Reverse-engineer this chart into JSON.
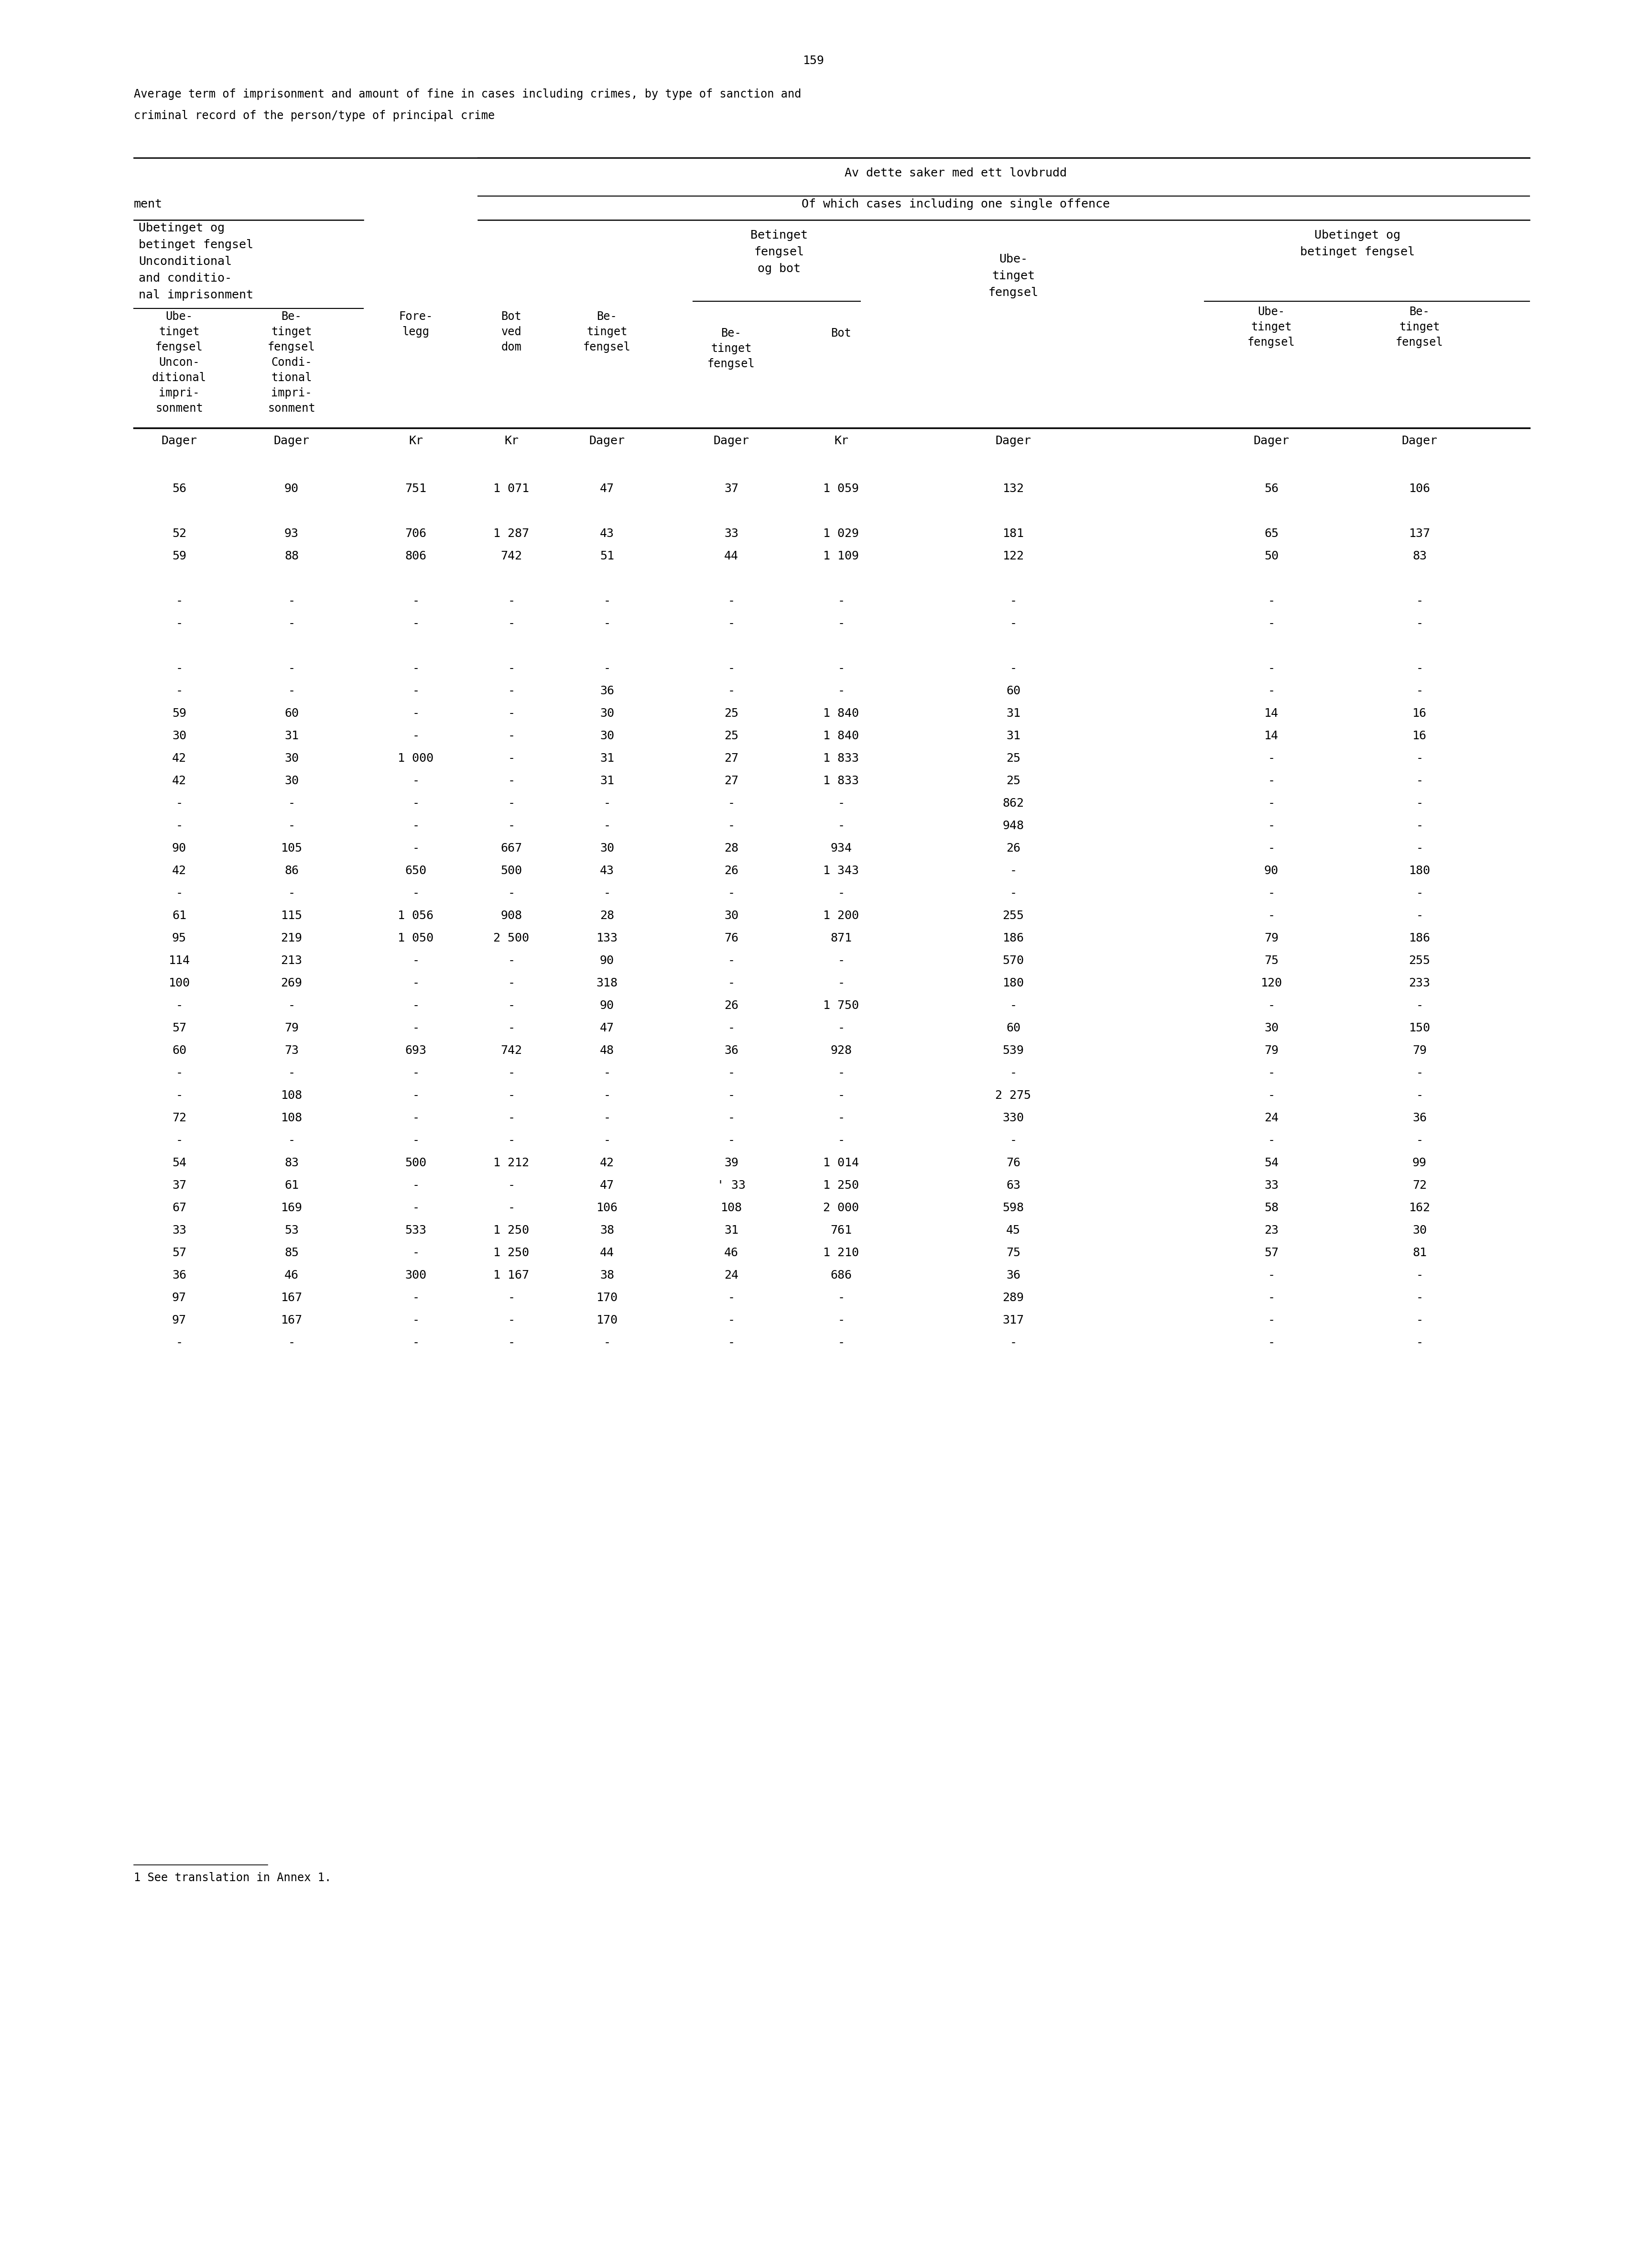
{
  "page_number": "159",
  "title_line1": "Average term of imprisonment and amount of fine in cases including crimes, by type of sanction and",
  "title_line2": "criminal record of the person/type of principal crime",
  "unit_row": [
    "Dager",
    "Dager",
    "Kr",
    "Kr",
    "Dager",
    "Dager",
    "Kr",
    "Dager",
    "Dager",
    "Dager"
  ],
  "data_rows": [
    [
      "56",
      "90",
      "751",
      "1 071",
      "47",
      "37",
      "1 059",
      "132",
      "56",
      "106"
    ],
    [
      "",
      "",
      "",
      "",
      "",
      "",
      "",
      "",
      "",
      ""
    ],
    [
      "52",
      "93",
      "706",
      "1 287",
      "43",
      "33",
      "1 029",
      "181",
      "65",
      "137"
    ],
    [
      "59",
      "88",
      "806",
      "742",
      "51",
      "44",
      "1 109",
      "122",
      "50",
      "83"
    ],
    [
      "",
      "",
      "",
      "",
      "",
      "",
      "",
      "",
      "",
      ""
    ],
    [
      "-",
      "-",
      "-",
      "-",
      "-",
      "-",
      "-",
      "-",
      "-",
      "-"
    ],
    [
      "-",
      "-",
      "-",
      "-",
      "-",
      "-",
      "-",
      "-",
      "-",
      "-"
    ],
    [
      "",
      "",
      "",
      "",
      "",
      "",
      "",
      "",
      "",
      ""
    ],
    [
      "-",
      "-",
      "-",
      "-",
      "-",
      "-",
      "-",
      "-",
      "-",
      "-"
    ],
    [
      "-",
      "-",
      "-",
      "-",
      "36",
      "-",
      "-",
      "60",
      "-",
      "-"
    ],
    [
      "59",
      "60",
      "-",
      "-",
      "30",
      "25",
      "1 840",
      "31",
      "14",
      "16"
    ],
    [
      "30",
      "31",
      "-",
      "-",
      "30",
      "25",
      "1 840",
      "31",
      "14",
      "16"
    ],
    [
      "42",
      "30",
      "1 000",
      "-",
      "31",
      "27",
      "1 833",
      "25",
      "-",
      "-"
    ],
    [
      "42",
      "30",
      "-",
      "-",
      "31",
      "27",
      "1 833",
      "25",
      "-",
      "-"
    ],
    [
      "-",
      "-",
      "-",
      "-",
      "-",
      "-",
      "-",
      "862",
      "-",
      "-"
    ],
    [
      "-",
      "-",
      "-",
      "-",
      "-",
      "-",
      "-",
      "948",
      "-",
      "-"
    ],
    [
      "90",
      "105",
      "-",
      "667",
      "30",
      "28",
      "934",
      "26",
      "-",
      "-"
    ],
    [
      "42",
      "86",
      "650",
      "500",
      "43",
      "26",
      "1 343",
      "-",
      "90",
      "180"
    ],
    [
      "-",
      "-",
      "-",
      "-",
      "-",
      "-",
      "-",
      "-",
      "-",
      "-"
    ],
    [
      "61",
      "115",
      "1 056",
      "908",
      "28",
      "30",
      "1 200",
      "255",
      "-",
      "-"
    ],
    [
      "95",
      "219",
      "1 050",
      "2 500",
      "133",
      "76",
      "871",
      "186",
      "79",
      "186"
    ],
    [
      "114",
      "213",
      "-",
      "-",
      "90",
      "-",
      "-",
      "570",
      "75",
      "255"
    ],
    [
      "100",
      "269",
      "-",
      "-",
      "318",
      "-",
      "-",
      "180",
      "120",
      "233"
    ],
    [
      "-",
      "-",
      "-",
      "-",
      "90",
      "26",
      "1 750",
      "-",
      "-",
      "-"
    ],
    [
      "57",
      "79",
      "-",
      "-",
      "47",
      "-",
      "-",
      "60",
      "30",
      "150"
    ],
    [
      "60",
      "73",
      "693",
      "742",
      "48",
      "36",
      "928",
      "539",
      "79",
      "79"
    ],
    [
      "-",
      "-",
      "-",
      "-",
      "-",
      "-",
      "-",
      "-",
      "-",
      "-"
    ],
    [
      "-",
      "108",
      "-",
      "-",
      "-",
      "-",
      "-",
      "2 275",
      "-",
      "-"
    ],
    [
      "72",
      "108",
      "-",
      "-",
      "-",
      "-",
      "-",
      "330",
      "24",
      "36"
    ],
    [
      "-",
      "-",
      "-",
      "-",
      "-",
      "-",
      "-",
      "-",
      "-",
      "-"
    ],
    [
      "54",
      "83",
      "500",
      "1 212",
      "42",
      "39",
      "1 014",
      "76",
      "54",
      "99"
    ],
    [
      "37",
      "61",
      "-",
      "-",
      "47",
      "' 33",
      "1 250",
      "63",
      "33",
      "72"
    ],
    [
      "67",
      "169",
      "-",
      "-",
      "106",
      "108",
      "2 000",
      "598",
      "58",
      "162"
    ],
    [
      "33",
      "53",
      "533",
      "1 250",
      "38",
      "31",
      "761",
      "45",
      "23",
      "30"
    ],
    [
      "57",
      "85",
      "-",
      "1 250",
      "44",
      "46",
      "1 210",
      "75",
      "57",
      "81"
    ],
    [
      "36",
      "46",
      "300",
      "1 167",
      "38",
      "24",
      "686",
      "36",
      "-",
      "-"
    ],
    [
      "97",
      "167",
      "-",
      "-",
      "170",
      "-",
      "-",
      "289",
      "-",
      "-"
    ],
    [
      "97",
      "167",
      "-",
      "-",
      "170",
      "-",
      "-",
      "317",
      "-",
      "-"
    ],
    [
      "-",
      "-",
      "-",
      "-",
      "-",
      "-",
      "-",
      "-",
      "-",
      "-"
    ]
  ],
  "footnote": "1 See translation in Annex 1."
}
